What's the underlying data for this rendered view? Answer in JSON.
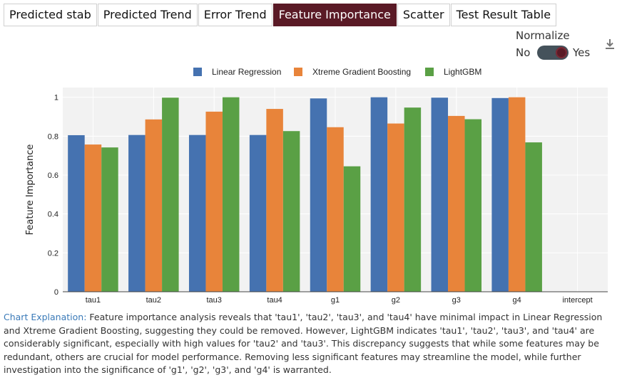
{
  "tabs": [
    {
      "label": "Predicted stab",
      "active": false
    },
    {
      "label": "Predicted Trend",
      "active": false
    },
    {
      "label": "Error Trend",
      "active": false
    },
    {
      "label": "Feature Importance",
      "active": true
    },
    {
      "label": "Scatter",
      "active": false
    },
    {
      "label": "Test Result Table",
      "active": false
    }
  ],
  "normalize": {
    "title": "Normalize",
    "off_label": "No",
    "on_label": "Yes",
    "value": true
  },
  "download_icon": "download-icon",
  "colors": {
    "accent": "#5a1a26",
    "link": "#3a7ab8"
  },
  "chart_data": {
    "type": "bar",
    "title": "",
    "xlabel": "",
    "ylabel": "Feature Importance",
    "ylim": [
      0,
      1.05
    ],
    "yticks": [
      0,
      0.2,
      0.4,
      0.6,
      0.8,
      1
    ],
    "grid": true,
    "legend_position": "top",
    "categories": [
      "tau1",
      "tau2",
      "tau3",
      "tau4",
      "g1",
      "g2",
      "g3",
      "g4",
      "intercept"
    ],
    "series": [
      {
        "name": "Linear Regression",
        "color": "#4572b0",
        "values": [
          0.805,
          0.806,
          0.806,
          0.806,
          0.994,
          1.0,
          0.998,
          0.996,
          null
        ]
      },
      {
        "name": "Xtreme Gradient Boosting",
        "color": "#e8843a",
        "values": [
          0.757,
          0.886,
          0.926,
          0.94,
          0.846,
          0.865,
          0.904,
          1.0,
          null
        ]
      },
      {
        "name": "LightGBM",
        "color": "#5aa045",
        "values": [
          0.742,
          0.998,
          1.0,
          0.826,
          0.645,
          0.947,
          0.887,
          0.768,
          null
        ]
      }
    ]
  },
  "explanation": {
    "label": "Chart Explanation:",
    "text": "Feature importance analysis reveals that 'tau1', 'tau2', 'tau3', and 'tau4' have minimal impact in Linear Regression and Xtreme Gradient Boosting, suggesting they could be removed. However, LightGBM indicates 'tau1', 'tau2', 'tau3', and 'tau4' are considerably significant, especially with high values for 'tau2' and 'tau3'. This discrepancy suggests that while some features may be redundant, others are crucial for model performance. Removing less significant features may streamline the model, while further investigation into the significance of 'g1', 'g2', 'g3', and 'g4' is warranted."
  }
}
